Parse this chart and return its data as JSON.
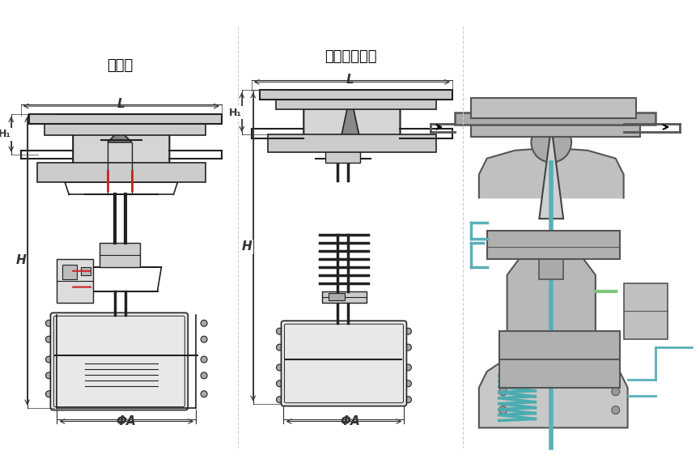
{
  "title": "",
  "background_color": "#ffffff",
  "label_left": "标准型",
  "label_middle": "散热、高温型",
  "label_phi_a": "ΦA",
  "label_H": "H",
  "label_H1": "H₁",
  "label_L": "L",
  "figsize": [
    8.65,
    5.88
  ],
  "dpi": 100,
  "image_bg": "#f5f5f5",
  "valve_line_color": "#222222",
  "dimension_color": "#333333",
  "red_accent": "#cc2222",
  "font_size_label": 13,
  "font_size_dim": 11
}
